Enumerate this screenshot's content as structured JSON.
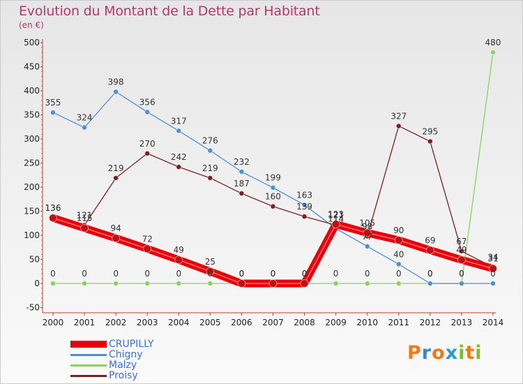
{
  "title": "Evolution du Montant de la Dette par Habitant",
  "subtitle": "(en €)",
  "logo": {
    "text": "Proxiti",
    "colors": [
      "#f07a1a",
      "#3a84d0",
      "#f07a1a",
      "#2a9ad4",
      "#7bbf2a",
      "#f07a1a",
      "#7bbf2a"
    ]
  },
  "chart_data": {
    "type": "line",
    "x": [
      2000,
      2001,
      2002,
      2003,
      2004,
      2005,
      2006,
      2007,
      2008,
      2009,
      2010,
      2011,
      2012,
      2013,
      2014
    ],
    "ylim": [
      -50,
      500
    ],
    "yticks": [
      -50,
      0,
      50,
      100,
      150,
      200,
      250,
      300,
      350,
      400,
      450,
      500
    ],
    "grid": false,
    "legend_position": "bottom-left",
    "series": [
      {
        "name": "CRUPILLY",
        "color": "#e8000b",
        "values": [
          136,
          115,
          94,
          72,
          49,
          25,
          0,
          0,
          0,
          123,
          105,
          90,
          69,
          49,
          31
        ]
      },
      {
        "name": "Chigny",
        "color": "#4d8fd0",
        "values": [
          355,
          324,
          398,
          356,
          317,
          276,
          232,
          199,
          163,
          114,
          77,
          40,
          0,
          0,
          0
        ]
      },
      {
        "name": "Malzy",
        "color": "#8ad35a",
        "values": [
          0,
          0,
          0,
          0,
          0,
          0,
          0,
          0,
          0,
          0,
          0,
          0,
          0,
          0,
          480
        ]
      },
      {
        "name": "Proisy",
        "color": "#7a1f22",
        "values": [
          136,
          121,
          219,
          270,
          242,
          219,
          187,
          160,
          139,
          121,
          98,
          327,
          295,
          67,
          34
        ]
      }
    ]
  }
}
